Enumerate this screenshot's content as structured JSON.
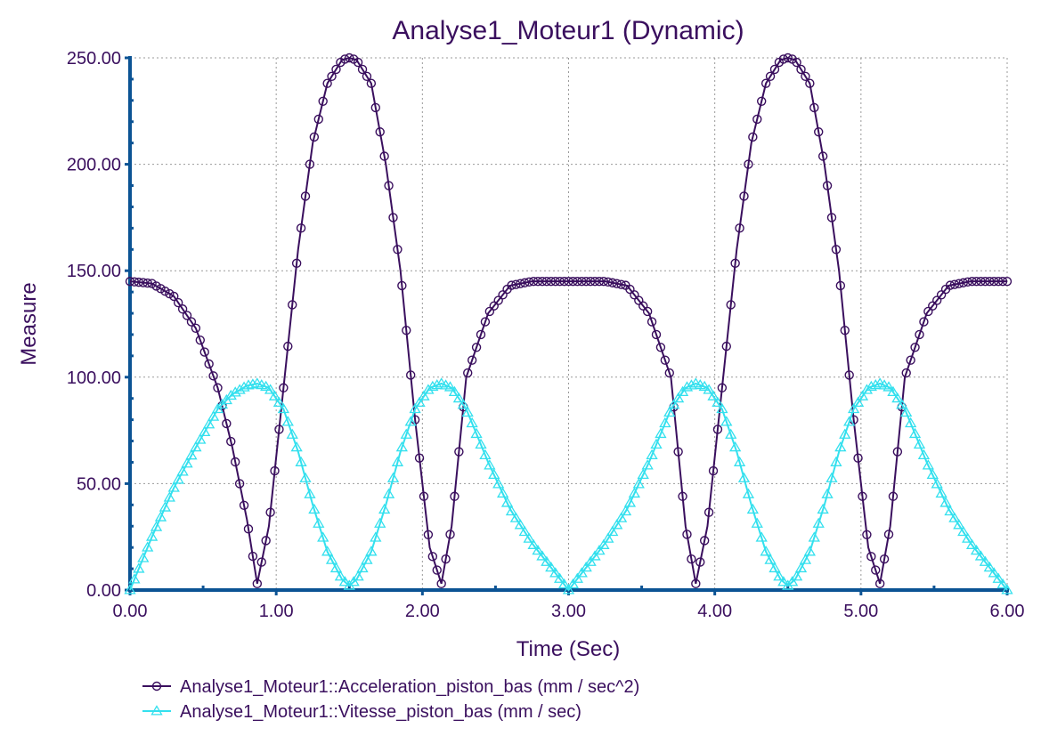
{
  "chart_data": {
    "type": "line",
    "title": "Analyse1_Moteur1 (Dynamic)",
    "xlabel": "Time (Sec)",
    "ylabel": "Measure",
    "xlim": [
      0,
      6
    ],
    "ylim": [
      0,
      250
    ],
    "x_ticks": [
      "0.00",
      "1.00",
      "2.00",
      "3.00",
      "4.00",
      "5.00",
      "6.00"
    ],
    "y_ticks": [
      "0.00",
      "50.00",
      "100.00",
      "150.00",
      "200.00",
      "250.00"
    ],
    "grid": true,
    "legend_position": "bottom",
    "x": [
      0,
      0.15,
      0.3,
      0.45,
      0.6,
      0.7,
      0.8,
      0.87,
      0.95,
      1.05,
      1.15,
      1.25,
      1.35,
      1.45,
      1.5,
      1.55,
      1.65,
      1.75,
      1.85,
      1.95,
      2.05,
      2.13,
      2.2,
      2.3,
      2.45,
      2.6,
      2.75,
      3.0,
      3.25,
      3.4,
      3.55,
      3.7,
      3.8,
      3.87,
      3.95,
      4.05,
      4.15,
      4.25,
      4.35,
      4.45,
      4.5,
      4.55,
      4.65,
      4.75,
      4.85,
      4.95,
      5.05,
      5.13,
      5.2,
      5.3,
      5.45,
      5.6,
      5.75,
      6.0
    ],
    "series": [
      {
        "name": "Analyse1_Moteur1::Acceleration_piston_bas (mm / sec^2)",
        "color": "#3a0f5e",
        "marker": "circle",
        "values": [
          145,
          144,
          138,
          123,
          95,
          67,
          33,
          3,
          30,
          95,
          160,
          210,
          238,
          249,
          250,
          249,
          238,
          200,
          150,
          80,
          20,
          3,
          30,
          100,
          130,
          143,
          145,
          145,
          145,
          143,
          130,
          100,
          30,
          3,
          30,
          95,
          160,
          210,
          238,
          249,
          250,
          249,
          238,
          200,
          150,
          80,
          20,
          3,
          30,
          100,
          130,
          143,
          145,
          145
        ]
      },
      {
        "name": "Analyse1_Moteur1::Vitesse_piston_bas (mm / sec)",
        "color": "#33e0ee",
        "marker": "triangle",
        "values": [
          0,
          25,
          48,
          67,
          85,
          92,
          96,
          97,
          95,
          85,
          65,
          40,
          18,
          5,
          2,
          5,
          18,
          40,
          65,
          85,
          95,
          97,
          95,
          85,
          60,
          38,
          22,
          0,
          22,
          38,
          60,
          85,
          95,
          97,
          95,
          85,
          65,
          40,
          18,
          5,
          2,
          5,
          18,
          40,
          65,
          85,
          95,
          97,
          95,
          85,
          60,
          38,
          22,
          0
        ]
      }
    ]
  }
}
